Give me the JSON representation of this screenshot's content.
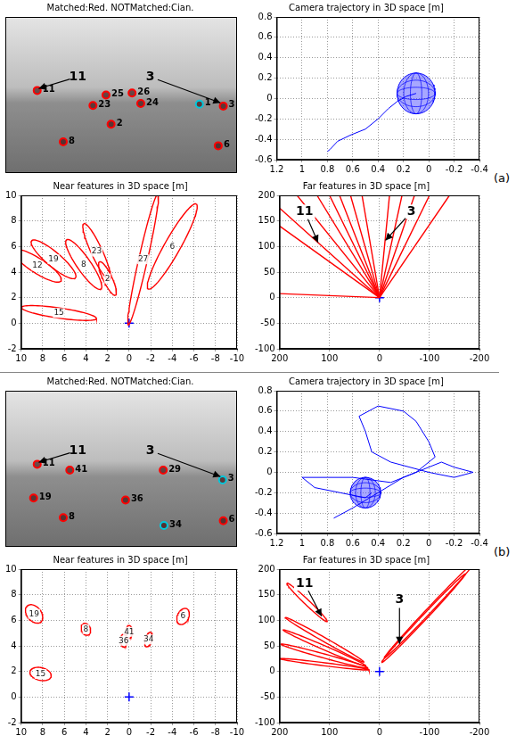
{
  "chart_data": [
    {
      "type": "image_features",
      "title": "Matched:Red. NOTMatched:Cian.",
      "xlim": [
        0,
        320
      ],
      "ylim": [
        240,
        0
      ],
      "tick_labels": false,
      "grid": false,
      "features": [
        {
          "name": "11",
          "x": 44,
          "y": 113,
          "color": "#ff0000"
        },
        {
          "name": "25",
          "x": 139,
          "y": 120,
          "color": "#ff0000"
        },
        {
          "name": "26",
          "x": 175,
          "y": 117,
          "color": "#ff0000"
        },
        {
          "name": "23",
          "x": 121,
          "y": 136,
          "color": "#ff0000"
        },
        {
          "name": "24",
          "x": 187,
          "y": 133,
          "color": "#ff0000"
        },
        {
          "name": "1",
          "x": 268,
          "y": 134,
          "color": "#00c8dc"
        },
        {
          "name": "3",
          "x": 301,
          "y": 137,
          "color": "#ff0000"
        },
        {
          "name": "2",
          "x": 146,
          "y": 165,
          "color": "#ff0000"
        },
        {
          "name": "8",
          "x": 80,
          "y": 192,
          "color": "#ff0000"
        },
        {
          "name": "6",
          "x": 294,
          "y": 198,
          "color": "#ff0000"
        }
      ],
      "annotations": [
        {
          "text": "11",
          "xy": [
            46,
            110
          ],
          "text_xy": [
            100,
            92
          ]
        },
        {
          "text": "3",
          "xy": [
            297,
            132
          ],
          "text_xy": [
            200,
            92
          ]
        }
      ]
    },
    {
      "type": "line",
      "title": "Camera trajectory in 3D space [m]",
      "xlim": [
        1.2,
        -0.4
      ],
      "xticks": [
        1.2,
        1,
        0.8,
        0.6,
        0.4,
        0.2,
        0,
        -0.2,
        -0.4
      ],
      "ylim": [
        -0.6,
        0.8
      ],
      "yticks": [
        -0.6,
        -0.4,
        -0.2,
        0,
        0.2,
        0.4,
        0.6,
        0.8
      ],
      "grid": true,
      "color": "#0000ff",
      "x": [
        0.8,
        0.78,
        0.72,
        0.62,
        0.5,
        0.4,
        0.32,
        0.25,
        0.18,
        0.1
      ],
      "y": [
        -0.52,
        -0.5,
        -0.42,
        -0.36,
        -0.3,
        -0.2,
        -0.1,
        -0.03,
        0.02,
        0.05
      ],
      "uncertainty": {
        "center": [
          0.1,
          0.05
        ],
        "radii": [
          0.15,
          0.2
        ]
      }
    },
    {
      "type": "ellipses",
      "title": "Near features in 3D space [m]",
      "xlim": [
        10,
        -10
      ],
      "xticks": [
        10,
        8,
        6,
        4,
        2,
        0,
        -2,
        -4,
        -6,
        -8,
        -10
      ],
      "ylim": [
        -2,
        10
      ],
      "yticks": [
        -2,
        0,
        2,
        4,
        6,
        8,
        10
      ],
      "grid": true,
      "color": "#ff0000",
      "camera": [
        0,
        0
      ],
      "series": [
        {
          "name": "12",
          "center": [
            8.5,
            4.5
          ],
          "radii": [
            2.5,
            0.6
          ],
          "angle": 28
        },
        {
          "name": "19",
          "center": [
            7,
            5
          ],
          "radii": [
            2.5,
            0.6
          ],
          "angle": 35
        },
        {
          "name": "23",
          "center": [
            3,
            5.6
          ],
          "radii": [
            2.5,
            0.5
          ],
          "angle": 61
        },
        {
          "name": "8",
          "center": [
            4.2,
            4.6
          ],
          "radii": [
            2.5,
            0.6
          ],
          "angle": 50
        },
        {
          "name": "2",
          "center": [
            2,
            3.5
          ],
          "radii": [
            1.5,
            0.4
          ],
          "angle": 60
        },
        {
          "name": "27",
          "center": [
            -1.3,
            5
          ],
          "radii": [
            5.3,
            0.4
          ],
          "angle": 105
        },
        {
          "name": "6",
          "center": [
            -4,
            6
          ],
          "radii": [
            4,
            0.7
          ],
          "angle": 124
        },
        {
          "name": "15",
          "center": [
            6.5,
            0.8
          ],
          "radii": [
            3.5,
            0.4
          ],
          "angle": 7
        }
      ]
    },
    {
      "type": "ellipses",
      "title": "Far features in 3D space [m]",
      "xlim": [
        200,
        -200
      ],
      "xticks": [
        200,
        100,
        0,
        -100,
        -200
      ],
      "ylim": [
        -100,
        200
      ],
      "yticks": [
        -100,
        -50,
        0,
        50,
        100,
        150,
        200
      ],
      "grid": true,
      "color": "#ff0000",
      "camera": [
        0,
        0
      ],
      "rays": [
        [
          200,
          175
        ],
        [
          200,
          140
        ],
        [
          165,
          200
        ],
        [
          125,
          200
        ],
        [
          100,
          200
        ],
        [
          80,
          200
        ],
        [
          58,
          200
        ],
        [
          35,
          200
        ],
        [
          -20,
          200
        ],
        [
          -45,
          200
        ],
        [
          -70,
          200
        ],
        [
          -100,
          200
        ],
        [
          -140,
          200
        ],
        [
          200,
          8
        ]
      ],
      "annotations": [
        {
          "text": "11",
          "xy": [
            123,
            108
          ],
          "text_xy": [
            150,
            168
          ]
        },
        {
          "text": "3",
          "xy": [
            -12,
            112
          ],
          "text_xy": [
            -64,
            168
          ]
        }
      ]
    },
    {
      "type": "image_features",
      "title": "Matched:Red. NOTMatched:Cian.",
      "xlim": [
        0,
        320
      ],
      "ylim": [
        240,
        0
      ],
      "tick_labels": false,
      "grid": false,
      "features": [
        {
          "name": "11",
          "x": 44,
          "y": 113,
          "color": "#ff0000"
        },
        {
          "name": "41",
          "x": 89,
          "y": 122,
          "color": "#ff0000"
        },
        {
          "name": "29",
          "x": 218,
          "y": 122,
          "color": "#ff0000"
        },
        {
          "name": "3",
          "x": 300,
          "y": 137,
          "color": "#00c8dc"
        },
        {
          "name": "19",
          "x": 39,
          "y": 165,
          "color": "#ff0000"
        },
        {
          "name": "36",
          "x": 166,
          "y": 168,
          "color": "#ff0000"
        },
        {
          "name": "8",
          "x": 80,
          "y": 195,
          "color": "#ff0000"
        },
        {
          "name": "34",
          "x": 219,
          "y": 207,
          "color": "#00c8dc"
        },
        {
          "name": "6",
          "x": 301,
          "y": 200,
          "color": "#ff0000"
        }
      ],
      "annotations": [
        {
          "text": "11",
          "xy": [
            46,
            110
          ],
          "text_xy": [
            100,
            92
          ]
        },
        {
          "text": "3",
          "xy": [
            297,
            132
          ],
          "text_xy": [
            200,
            92
          ]
        }
      ]
    },
    {
      "type": "line",
      "title": "Camera trajectory in 3D space [m]",
      "xlim": [
        1.2,
        -0.4
      ],
      "xticks": [
        1.2,
        1,
        0.8,
        0.6,
        0.4,
        0.2,
        0,
        -0.2,
        -0.4
      ],
      "ylim": [
        -0.6,
        0.8
      ],
      "yticks": [
        -0.6,
        -0.4,
        -0.2,
        0,
        0.2,
        0.4,
        0.6,
        0.8
      ],
      "grid": true,
      "color": "#0000ff",
      "x": [
        0.75,
        0.6,
        0.4,
        0.2,
        0.0,
        -0.1,
        -0.2,
        -0.35,
        -0.2,
        0.0,
        0.3,
        0.45,
        0.5,
        0.55,
        0.4,
        0.2,
        0.1,
        0.0,
        -0.05,
        0.1,
        0.3,
        0.6,
        0.8,
        1.0,
        0.9,
        0.7,
        0.5,
        0.45
      ],
      "y": [
        -0.45,
        -0.35,
        -0.2,
        -0.05,
        0.05,
        0.1,
        0.05,
        0.0,
        -0.05,
        0.0,
        0.1,
        0.2,
        0.4,
        0.55,
        0.65,
        0.6,
        0.5,
        0.3,
        0.15,
        0.0,
        -0.1,
        -0.05,
        -0.05,
        -0.05,
        -0.15,
        -0.2,
        -0.25,
        -0.2
      ],
      "uncertainty": {
        "center": [
          0.5,
          -0.2
        ],
        "radii": [
          0.12,
          0.15
        ]
      }
    },
    {
      "type": "ellipses",
      "title": "Near features in 3D space [m]",
      "xlim": [
        10,
        -10
      ],
      "xticks": [
        10,
        8,
        6,
        4,
        2,
        0,
        -2,
        -4,
        -6,
        -8,
        -10
      ],
      "ylim": [
        -2,
        10
      ],
      "yticks": [
        -2,
        0,
        2,
        4,
        6,
        8,
        10
      ],
      "grid": true,
      "color": "#ff0000",
      "camera": [
        0,
        0
      ],
      "series": [
        {
          "name": "19",
          "center": [
            8.8,
            6.5
          ],
          "radii": [
            0.9,
            0.6
          ],
          "angle": 37
        },
        {
          "name": "15",
          "center": [
            8.2,
            1.8
          ],
          "radii": [
            1,
            0.5
          ],
          "angle": 10
        },
        {
          "name": "8",
          "center": [
            4,
            5.3
          ],
          "radii": [
            0.5,
            0.4
          ],
          "angle": 53
        },
        {
          "name": "41",
          "center": [
            0,
            5.1
          ],
          "radii": [
            0.5,
            0.3
          ],
          "angle": 90
        },
        {
          "name": "36",
          "center": [
            0.5,
            4.4
          ],
          "radii": [
            0.5,
            0.3
          ],
          "angle": 86
        },
        {
          "name": "34",
          "center": [
            -1.8,
            4.5
          ],
          "radii": [
            0.6,
            0.3
          ],
          "angle": 112
        },
        {
          "name": "6",
          "center": [
            -5,
            6.3
          ],
          "radii": [
            0.7,
            0.5
          ],
          "angle": 128
        }
      ]
    },
    {
      "type": "ellipses",
      "title": "Far features in 3D space [m]",
      "xlim": [
        200,
        -200
      ],
      "xticks": [
        200,
        100,
        0,
        -100,
        -200
      ],
      "ylim": [
        -100,
        200
      ],
      "yticks": [
        -100,
        -50,
        0,
        50,
        100,
        150,
        200
      ],
      "grid": true,
      "color": "#ff0000",
      "camera": [
        0,
        0
      ],
      "series": [
        {
          "name": null,
          "center": [
            145,
            135
          ],
          "radii": [
            55,
            5
          ],
          "angle": 43
        },
        {
          "name": null,
          "center": [
            110,
            62
          ],
          "radii": [
            90,
            4
          ],
          "angle": 29
        },
        {
          "name": null,
          "center": [
            110,
            46
          ],
          "radii": [
            90,
            4
          ],
          "angle": 23
        },
        {
          "name": null,
          "center": [
            110,
            30
          ],
          "radii": [
            90,
            4
          ],
          "angle": 15
        },
        {
          "name": null,
          "center": [
            110,
            14
          ],
          "radii": [
            90,
            3
          ],
          "angle": 7
        },
        {
          "name": null,
          "center": [
            -100,
            120
          ],
          "radii": [
            130,
            5
          ],
          "angle": 134
        },
        {
          "name": null,
          "center": [
            -88,
            104
          ],
          "radii": [
            120,
            5
          ],
          "angle": 134
        }
      ],
      "annotations": [
        {
          "text": "11",
          "xy": [
            116,
            108
          ],
          "text_xy": [
            150,
            172
          ]
        },
        {
          "text": "3",
          "xy": [
            -40,
            54
          ],
          "text_xy": [
            -40,
            140
          ]
        }
      ]
    }
  ],
  "panel_labels": [
    "(a)",
    "(b)"
  ]
}
